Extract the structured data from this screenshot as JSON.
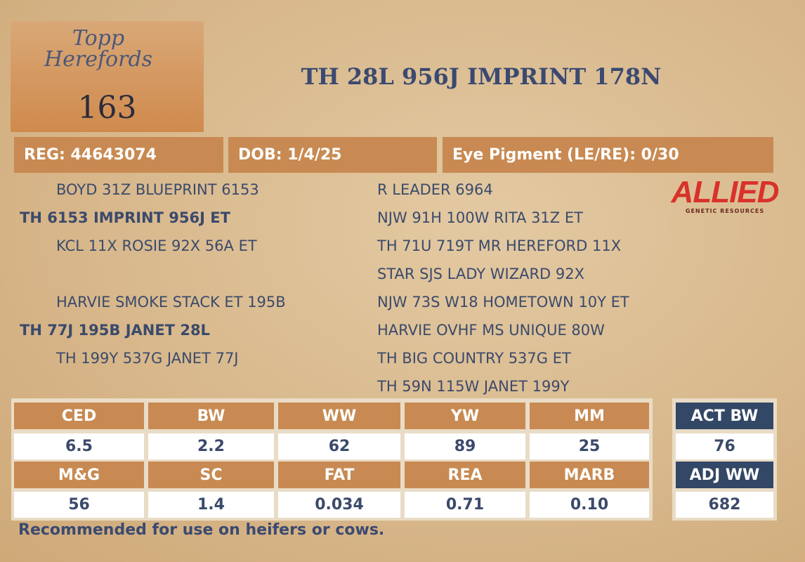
{
  "logo": {
    "text": "Topp Herefords"
  },
  "lot": "163",
  "title": "TH 28L 956J IMPRINT 178N",
  "info": [
    "REG: 44643074",
    "DOB: 1/4/25",
    "Eye Pigment (LE/RE): 0/30"
  ],
  "pedigree": {
    "sire_side": [
      {
        "text": "BOYD 31Z BLUEPRINT 6153",
        "bold": false
      },
      {
        "text": "TH 6153 IMPRINT 956J ET",
        "bold": true
      },
      {
        "text": "KCL 11X ROSIE 92X 56A ET",
        "bold": false
      }
    ],
    "dam_side": [
      {
        "text": "HARVIE SMOKE STACK ET 195B",
        "bold": false
      },
      {
        "text": "TH 77J 195B JANET 28L",
        "bold": true
      },
      {
        "text": "TH 199Y 537G JANET 77J",
        "bold": false
      }
    ],
    "grandparents": [
      "R LEADER 6964",
      "NJW 91H 100W RITA 31Z ET",
      "TH 71U 719T MR HEREFORD 11X",
      "STAR SJS LADY WIZARD 92X",
      "NJW 73S W18 HOMETOWN 10Y ET",
      "HARVIE OVHF MS UNIQUE 80W",
      "TH BIG COUNTRY 537G ET",
      "TH 59N 115W JANET 199Y"
    ]
  },
  "sponsor": {
    "name": "ALLIED",
    "tagline": "GENETIC RESOURCES"
  },
  "epd": {
    "rows": [
      {
        "headers": [
          "CED",
          "BW",
          "WW",
          "YW",
          "MM"
        ],
        "values": [
          "6.5",
          "2.2",
          "62",
          "89",
          "25"
        ]
      },
      {
        "headers": [
          "M&G",
          "SC",
          "FAT",
          "REA",
          "MARB"
        ],
        "values": [
          "56",
          "1.4",
          "0.034",
          "0.71",
          "0.10"
        ]
      }
    ]
  },
  "actuals": [
    {
      "header": "ACT BW",
      "value": "76"
    },
    {
      "header": "ADJ WW",
      "value": "682"
    }
  ],
  "note": "Recommended for use on heifers or cows."
}
